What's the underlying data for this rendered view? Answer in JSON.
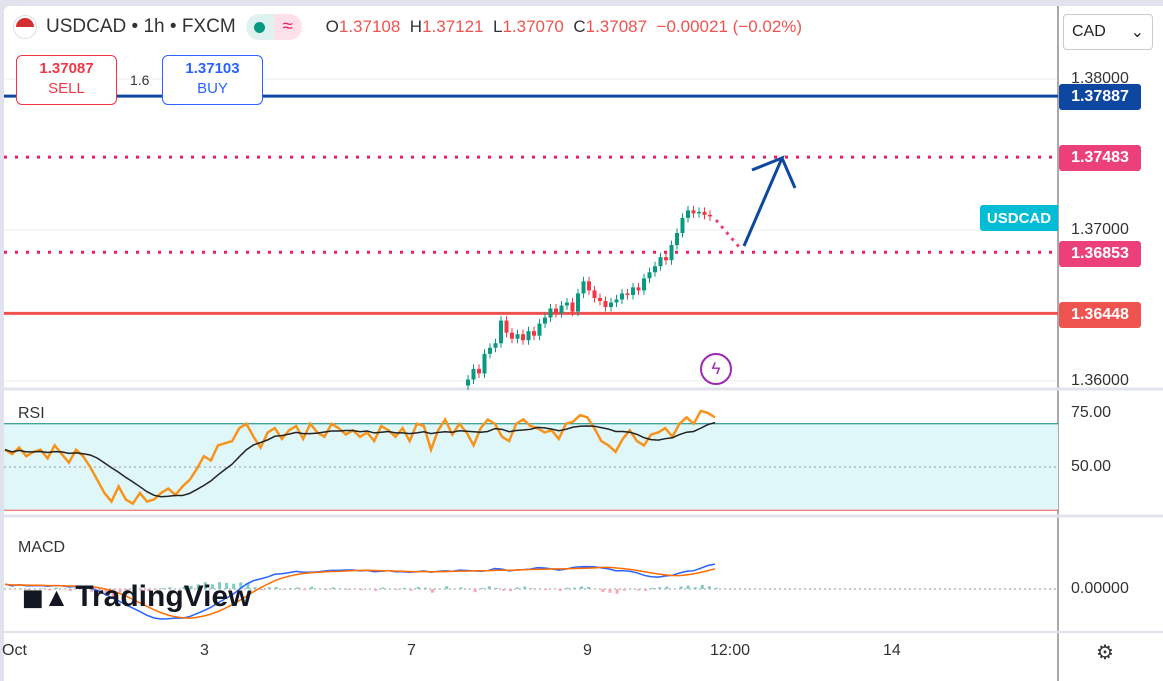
{
  "header": {
    "symbol": "USDCAD",
    "interval": "1h",
    "exchange": "FXCM",
    "sep": "•",
    "ohlc": [
      {
        "k": "O",
        "v": "1.37108"
      },
      {
        "k": "H",
        "v": "1.37121"
      },
      {
        "k": "L",
        "v": "1.37070"
      },
      {
        "k": "C",
        "v": "1.37087"
      }
    ],
    "change": "−0.00021 (−0.02%)"
  },
  "trade": {
    "sell_price": "1.37087",
    "sell_label": "SELL",
    "spread": "1.6",
    "buy_price": "1.37103",
    "buy_label": "BUY"
  },
  "currency_select": "CAD",
  "price_axis": {
    "ticks": [
      "1.38000",
      "1.37000",
      "1.36000"
    ]
  },
  "levels": [
    {
      "price": "1.37887",
      "color": "#0d47a1",
      "style": "solid"
    },
    {
      "price": "1.37483",
      "color": "#e91e63",
      "style": "dotted"
    },
    {
      "price": "1.36853",
      "color": "#e91e63",
      "style": "dotted"
    },
    {
      "price": "1.36448",
      "color": "#ef5350",
      "style": "solid"
    }
  ],
  "symbol_tag": "USDCAD",
  "rsi": {
    "label": "RSI",
    "ticks": [
      "75.00",
      "50.00"
    ],
    "values": [
      58,
      56,
      59,
      55,
      57,
      58,
      54,
      60,
      56,
      52,
      58,
      55,
      50,
      44,
      38,
      34,
      41,
      35,
      33,
      38,
      34,
      35,
      38,
      40,
      37,
      41,
      44,
      49,
      55,
      53,
      60,
      61,
      62,
      68,
      70,
      64,
      59,
      66,
      68,
      63,
      67,
      69,
      63,
      70,
      66,
      64,
      70,
      68,
      65,
      67,
      64,
      66,
      62,
      69,
      67,
      64,
      68,
      62,
      70,
      69,
      58,
      67,
      72,
      65,
      70,
      66,
      60,
      68,
      72,
      70,
      64,
      62,
      70,
      72,
      69,
      68,
      66,
      67,
      63,
      70,
      71,
      74,
      73,
      68,
      62,
      60,
      57,
      63,
      67,
      62,
      60,
      65,
      66,
      68,
      64,
      70,
      73,
      70,
      76,
      75,
      73
    ]
  },
  "macd": {
    "label": "MACD",
    "tick": "0.00000"
  },
  "time_axis": [
    "Oct",
    "3",
    "7",
    "9",
    "12:00",
    "14"
  ],
  "candles_close": [
    1.3601,
    1.3608,
    1.3605,
    1.3618,
    1.3622,
    1.3625,
    1.364,
    1.3632,
    1.3628,
    1.3631,
    1.3627,
    1.3633,
    1.363,
    1.3638,
    1.3642,
    1.3648,
    1.3645,
    1.365,
    1.3652,
    1.3646,
    1.3658,
    1.3666,
    1.366,
    1.3655,
    1.3653,
    1.3649,
    1.3652,
    1.3654,
    1.3658,
    1.3657,
    1.3662,
    1.366,
    1.3668,
    1.3672,
    1.3676,
    1.3682,
    1.368,
    1.369,
    1.3698,
    1.3708,
    1.3713,
    1.3711,
    1.3712,
    1.371,
    1.3709
  ],
  "brand": "TradingView",
  "colors": {
    "up": "#089981",
    "down": "#f23645",
    "rsi": "#f7931a",
    "arrow": "#0d47a1"
  }
}
